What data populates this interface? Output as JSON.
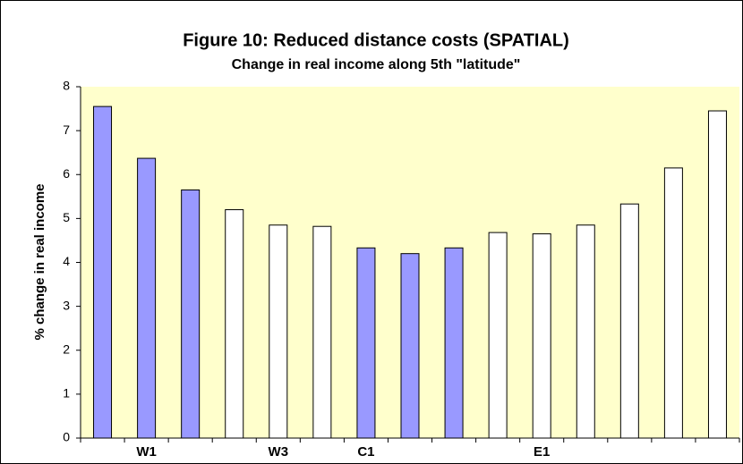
{
  "chart_data": {
    "type": "bar",
    "title": "Figure 10: Reduced distance costs (SPATIAL)",
    "subtitle": "Change in real income along 5th \"latitude\"",
    "y_label": "% change in real income",
    "categories": [
      null,
      "W1",
      null,
      null,
      "W3",
      null,
      "C1",
      null,
      null,
      null,
      "E1",
      null,
      null,
      null,
      null
    ],
    "values": [
      7.55,
      6.37,
      5.65,
      5.2,
      4.85,
      4.82,
      4.33,
      4.2,
      4.33,
      4.68,
      4.65,
      4.85,
      5.33,
      6.15,
      7.45
    ],
    "colors": [
      "#9999ff",
      "#9999ff",
      "#9999ff",
      "#ffffff",
      "#ffffff",
      "#ffffff",
      "#9999ff",
      "#9999ff",
      "#9999ff",
      "#ffffff",
      "#ffffff",
      "#ffffff",
      "#ffffff",
      "#ffffff",
      "#ffffff"
    ],
    "ylim": [
      0,
      8
    ],
    "yticks": [
      0,
      1,
      2,
      3,
      4,
      5,
      6,
      7,
      8
    ],
    "plot_background": "#ffffcc"
  }
}
